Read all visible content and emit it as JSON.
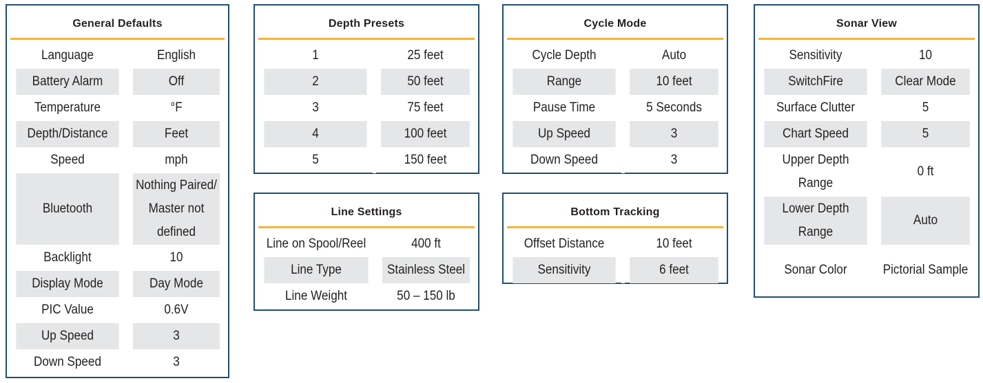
{
  "general": {
    "title": "General Defaults",
    "rows": [
      {
        "label": "Language",
        "value": "English"
      },
      {
        "label": "Battery Alarm",
        "value": "Off"
      },
      {
        "label": "Temperature",
        "value": "°F"
      },
      {
        "label": "Depth/Distance",
        "value": "Feet"
      },
      {
        "label": "Speed",
        "value": "mph"
      },
      {
        "label": "Bluetooth",
        "value": "Nothing Paired/ Master not defined"
      },
      {
        "label": "Backlight",
        "value": "10"
      },
      {
        "label": "Display Mode",
        "value": "Day Mode"
      },
      {
        "label": "PIC Value",
        "value": "0.6V"
      },
      {
        "label": "Up Speed",
        "value": "3"
      },
      {
        "label": "Down Speed",
        "value": "3"
      }
    ]
  },
  "depth_presets": {
    "title": "Depth Presets",
    "rows": [
      {
        "label": "1",
        "value": "25 feet"
      },
      {
        "label": "2",
        "value": "50 feet"
      },
      {
        "label": "3",
        "value": "75 feet"
      },
      {
        "label": "4",
        "value": "100 feet"
      },
      {
        "label": "5",
        "value": "150 feet"
      }
    ]
  },
  "line_settings": {
    "title": "Line Settings",
    "rows": [
      {
        "label": "Line on Spool/Reel",
        "value": "400 ft"
      },
      {
        "label": "Line Type",
        "value": "Stainless Steel"
      },
      {
        "label": "Line Weight",
        "value": "50 – 150 lb"
      }
    ]
  },
  "cycle_mode": {
    "title": "Cycle Mode",
    "rows": [
      {
        "label": "Cycle Depth",
        "value": "Auto"
      },
      {
        "label": "Range",
        "value": "10 feet"
      },
      {
        "label": "Pause Time",
        "value": "5 Seconds"
      },
      {
        "label": "Up Speed",
        "value": "3"
      },
      {
        "label": "Down Speed",
        "value": "3"
      }
    ]
  },
  "bottom_tracking": {
    "title": "Bottom Tracking",
    "rows": [
      {
        "label": "Offset Distance",
        "value": "10 feet"
      },
      {
        "label": "Sensitivity",
        "value": "6 feet"
      }
    ]
  },
  "sonar_view": {
    "title": "Sonar View",
    "rows": [
      {
        "label": "Sensitivity",
        "value": "10"
      },
      {
        "label": "SwitchFire",
        "value": "Clear Mode"
      },
      {
        "label": "Surface Clutter",
        "value": "5"
      },
      {
        "label": "Chart Speed",
        "value": "5"
      },
      {
        "label": "Upper Depth Range",
        "value": "0 ft"
      },
      {
        "label": "Lower Depth Range",
        "value": "Auto"
      },
      {
        "label": "Sonar Color",
        "value": "Pictorial Sample"
      }
    ]
  },
  "colors": {
    "border": "#1f4e6e",
    "accent_rule": "#f5b335",
    "row_shade": "#e5e6e7",
    "text": "#231f20"
  }
}
